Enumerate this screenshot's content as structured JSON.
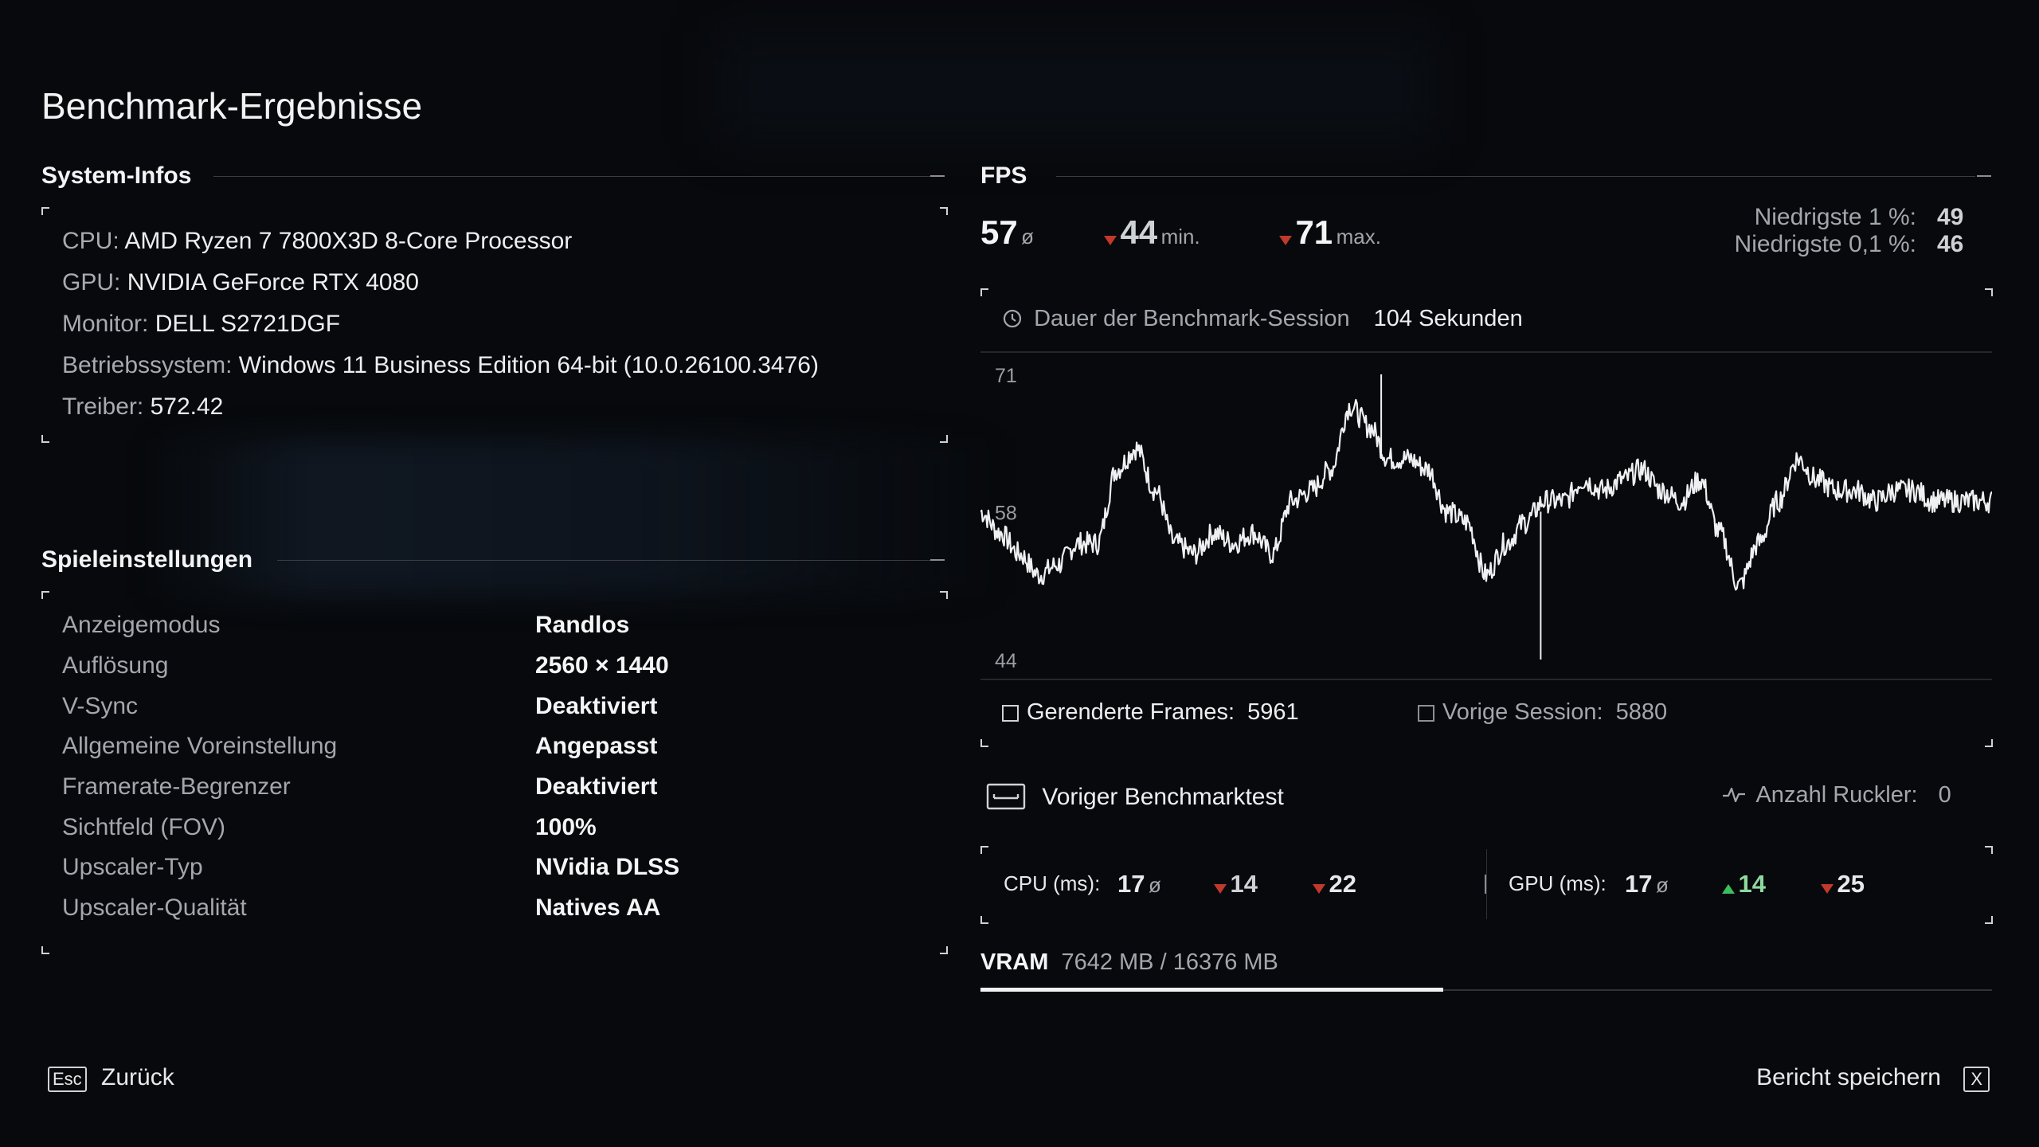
{
  "title": "Benchmark-Ergebnisse",
  "system": {
    "heading": "System-Infos",
    "items": [
      {
        "label": "CPU:",
        "value": "AMD Ryzen 7 7800X3D 8-Core Processor"
      },
      {
        "label": "GPU:",
        "value": "NVIDIA GeForce RTX 4080"
      },
      {
        "label": "Monitor:",
        "value": "DELL S2721DGF"
      },
      {
        "label": "Betriebssystem:",
        "value": "Windows 11 Business Edition 64-bit (10.0.26100.3476)"
      },
      {
        "label": "Treiber:",
        "value": "572.42"
      }
    ]
  },
  "settings": {
    "heading": "Spieleinstellungen",
    "items": [
      {
        "label": "Anzeigemodus",
        "value": "Randlos"
      },
      {
        "label": "Auflösung",
        "value": "2560 × 1440"
      },
      {
        "label": "V-Sync",
        "value": "Deaktiviert"
      },
      {
        "label": "Allgemeine Voreinstellung",
        "value": "Angepasst"
      },
      {
        "label": "Framerate-Begrenzer",
        "value": "Deaktiviert"
      },
      {
        "label": "Sichtfeld (FOV)",
        "value": "100%"
      },
      {
        "label": "Upscaler-Typ",
        "value": "NVidia DLSS"
      },
      {
        "label": "Upscaler-Qualität",
        "value": "Natives AA"
      }
    ]
  },
  "fps": {
    "heading": "FPS",
    "avg": "57",
    "avg_symbol": "ø",
    "min": "44",
    "min_label": "min.",
    "max": "71",
    "max_label": "max.",
    "low1_label": "Niedrigste 1 %:",
    "low1_value": "49",
    "low01_label": "Niedrigste 0,1 %:",
    "low01_value": "46",
    "session_label": "Dauer der Benchmark-Session",
    "session_value": "104 Sekunden",
    "rendered_label": "Gerenderte Frames:",
    "rendered_value": "5961",
    "prev_label": "Vorige Session:",
    "prev_value": "5880",
    "prev_benchmark_label": "Voriger Benchmarktest",
    "stutter_label": "Anzahl Ruckler:",
    "stutter_value": "0"
  },
  "frametimes": {
    "cpu_label": "CPU (ms):",
    "cpu_avg": "17",
    "cpu_min": "14",
    "cpu_max": "22",
    "gpu_label": "GPU (ms):",
    "gpu_avg": "17",
    "gpu_min": "14",
    "gpu_max": "25",
    "avg_symbol": "ø"
  },
  "vram": {
    "label": "VRAM",
    "value": "7642 MB / 16376 MB",
    "used_mb": 7642,
    "total_mb": 16376
  },
  "footer": {
    "back_key": "Esc",
    "back_label": "Zurück",
    "save_label": "Bericht speichern",
    "save_key": "X"
  },
  "colors": {
    "down_arrow": "#c0392b",
    "up_arrow": "#3cbf5a",
    "background": "#07090c"
  },
  "chart_data": {
    "type": "line",
    "ylim": [
      44,
      71
    ],
    "y_ticks": [
      "71",
      "58",
      "44"
    ],
    "xlim": [
      0,
      104
    ],
    "x": [
      0,
      2,
      4,
      6,
      8,
      10,
      12,
      14,
      16,
      18,
      20,
      22,
      24,
      26,
      28,
      30,
      32,
      34,
      36,
      38,
      40,
      42,
      44,
      46,
      48,
      50,
      52,
      54,
      56,
      58,
      60,
      62,
      64,
      66,
      68,
      70,
      72,
      74,
      76,
      78,
      80,
      82,
      84,
      86,
      88,
      90,
      92,
      94,
      96,
      98,
      100,
      102,
      104
    ],
    "values": [
      58,
      56,
      54,
      52,
      53,
      55,
      55,
      62,
      64,
      60,
      55,
      54,
      56,
      55,
      56,
      54,
      59,
      60,
      62,
      68,
      66,
      63,
      63,
      62,
      58,
      57,
      52,
      55,
      57,
      59,
      59,
      61,
      60,
      61,
      62,
      60,
      59,
      61,
      56,
      51,
      55,
      59,
      63,
      61,
      60,
      60,
      59,
      60,
      60,
      59,
      59,
      59,
      59
    ]
  }
}
